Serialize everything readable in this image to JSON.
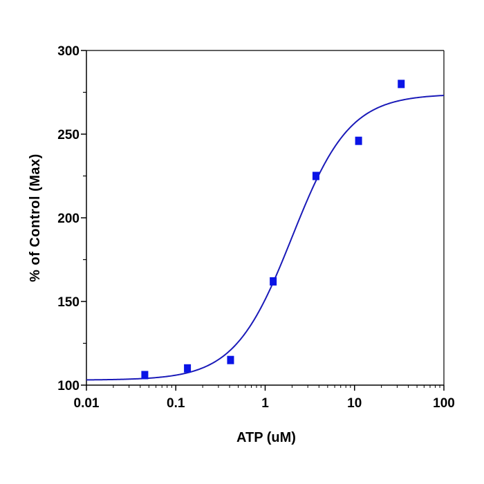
{
  "chart_data": {
    "type": "scatter",
    "title": "",
    "xlabel": "ATP (uM)",
    "ylabel": "% of Control (Max)",
    "x_scale": "log",
    "xlim": [
      0.01,
      100
    ],
    "ylim": [
      100,
      300
    ],
    "x_ticks": [
      0.01,
      0.1,
      1,
      10,
      100
    ],
    "x_tick_labels": [
      "0.01",
      "0.1",
      "1",
      "10",
      "100"
    ],
    "y_ticks": [
      100,
      150,
      200,
      250,
      300
    ],
    "y_tick_labels": [
      "100",
      "150",
      "200",
      "250",
      "300"
    ],
    "grid": false,
    "legend": "none",
    "colors": {
      "points": "#0a14e6",
      "curve": "#1a1ab8",
      "axis": "#000000"
    },
    "series": [
      {
        "points": [
          {
            "x": 0.045,
            "y": 106
          },
          {
            "x": 0.135,
            "y": 110
          },
          {
            "x": 0.41,
            "y": 115
          },
          {
            "x": 1.23,
            "y": 162
          },
          {
            "x": 3.7,
            "y": 225
          },
          {
            "x": 11.1,
            "y": 246
          },
          {
            "x": 33.3,
            "y": 280
          }
        ]
      }
    ],
    "fit_curve": {
      "model": "4PL",
      "bottom": 103,
      "top": 274,
      "ec50": 2.0,
      "hill": 1.35
    }
  }
}
